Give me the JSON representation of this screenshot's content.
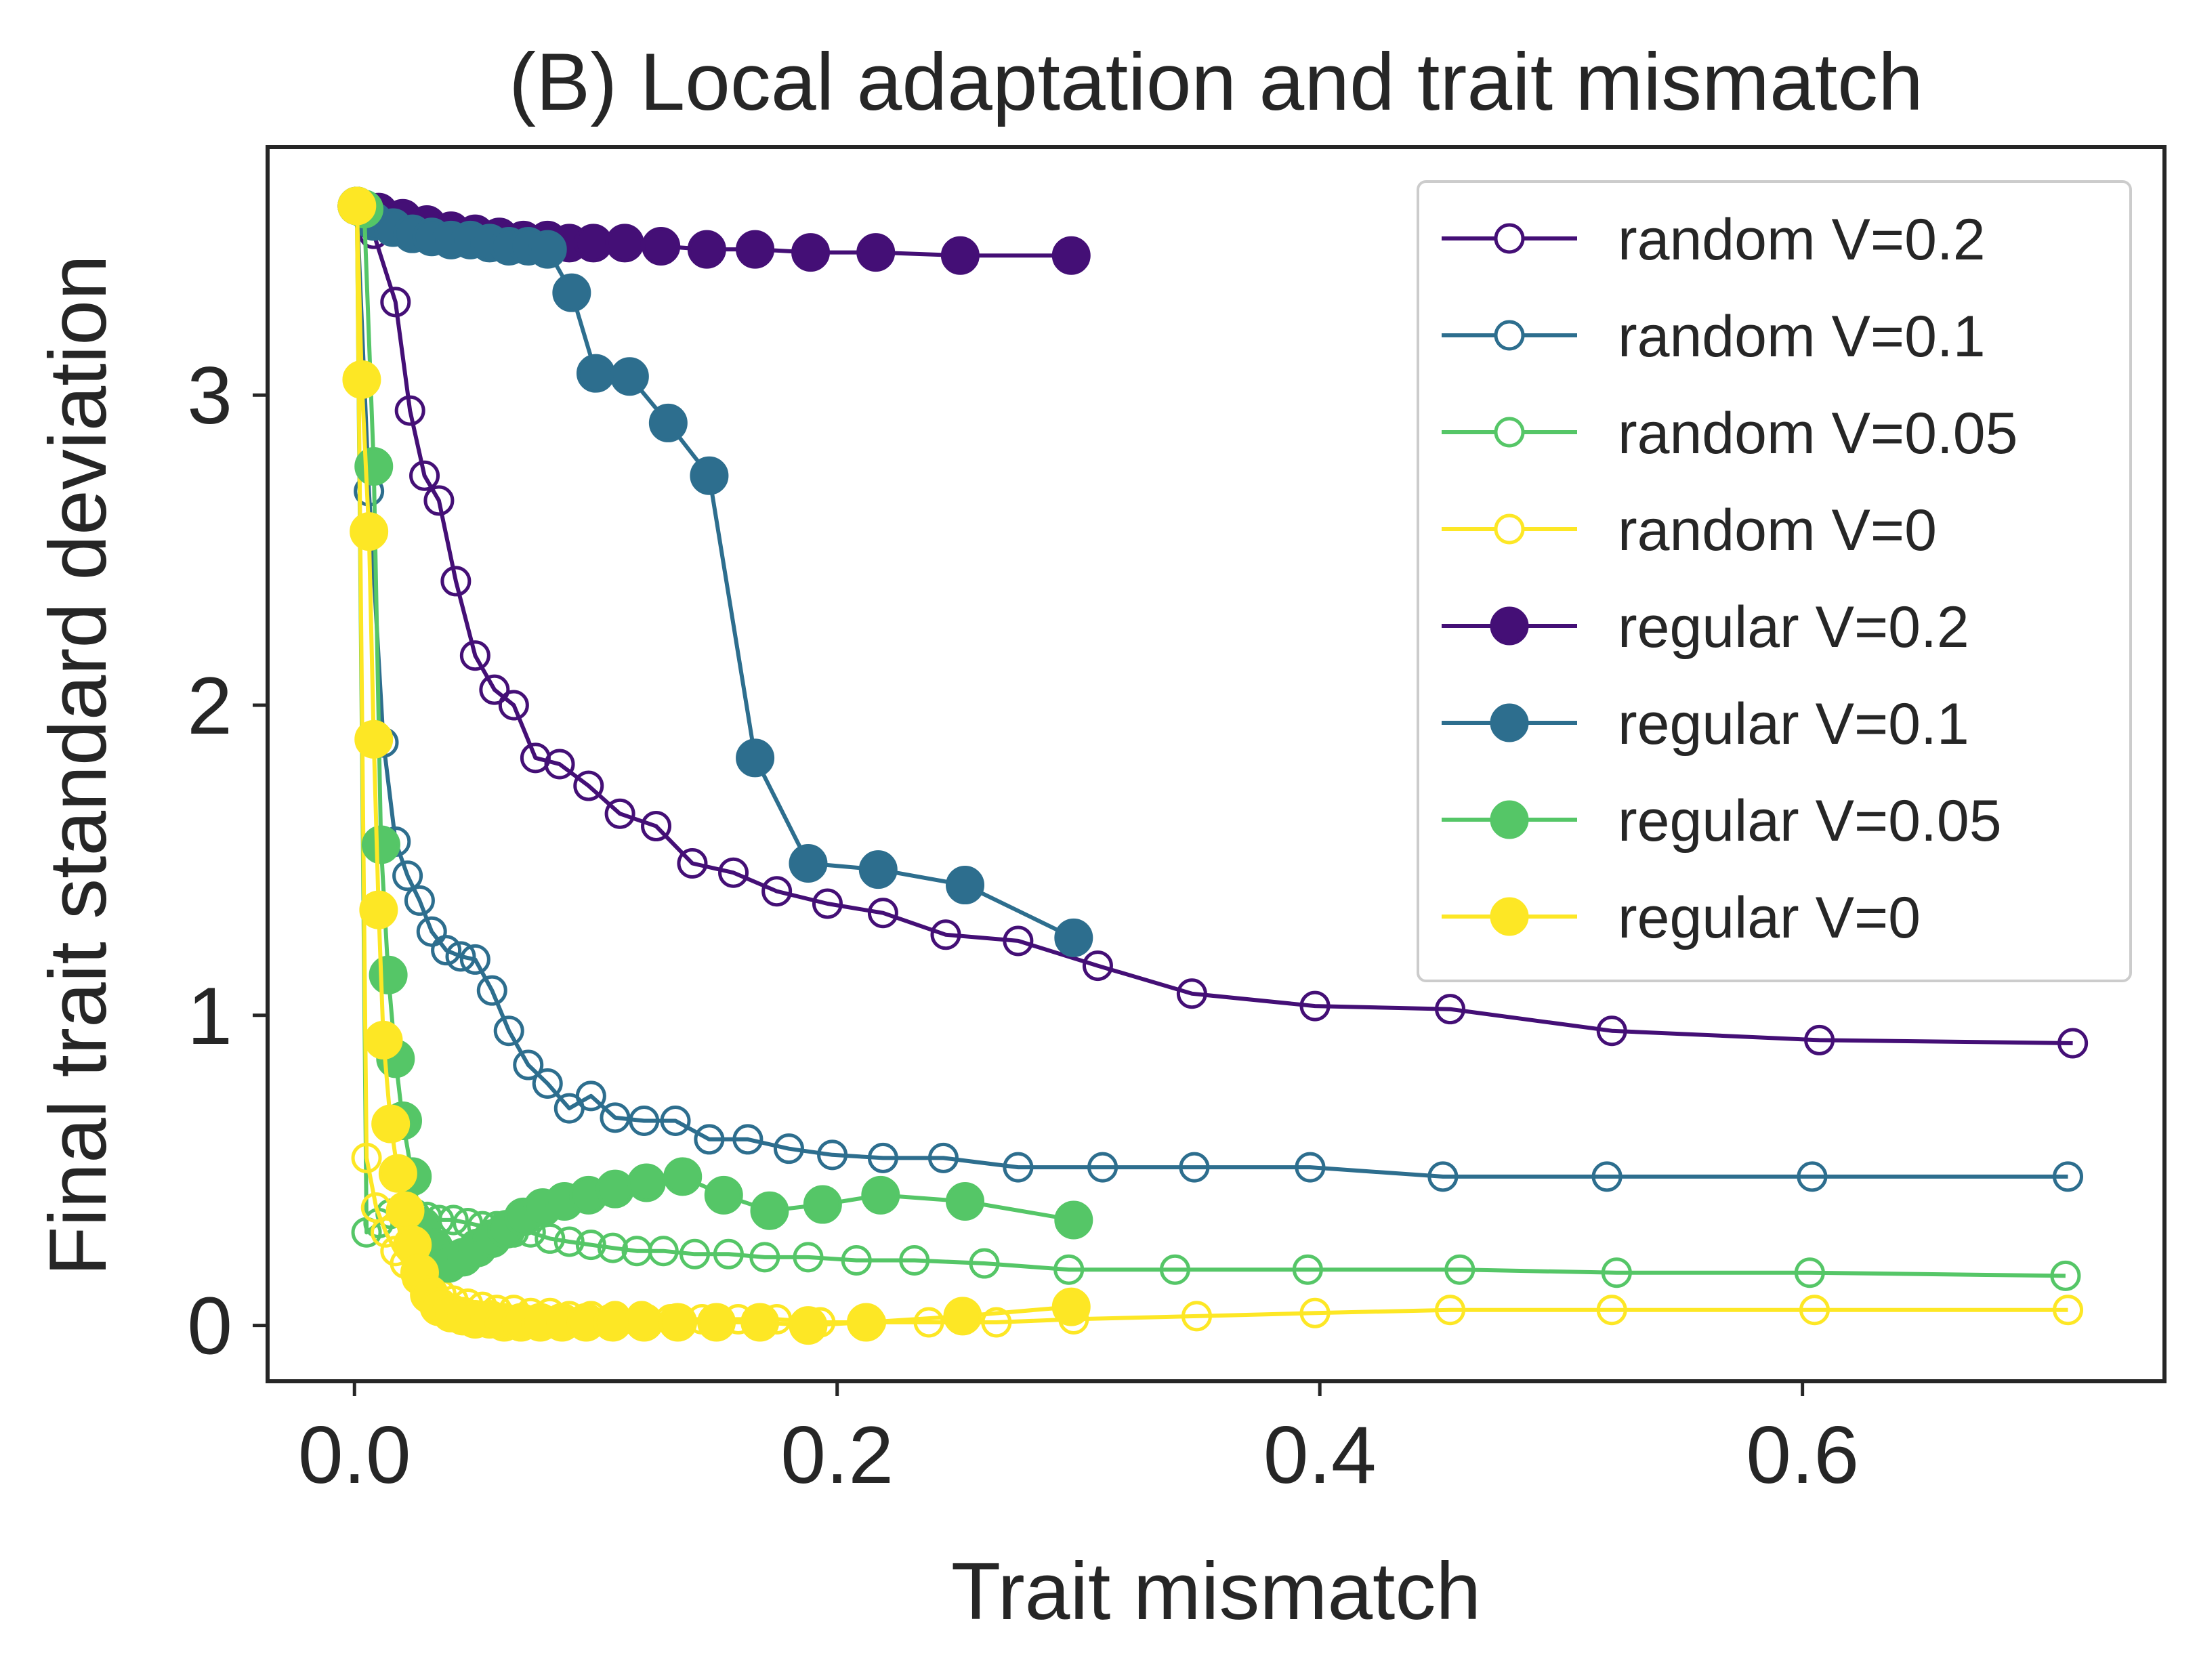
{
  "chart_data": {
    "type": "line",
    "title": "(B) Local adaptation and trait mismatch",
    "xlabel": "Trait mismatch",
    "ylabel": "Final trait standard deviation",
    "xlim": [
      -0.036,
      0.75
    ],
    "ylim": [
      -0.18,
      3.8
    ],
    "xticks": [
      0.0,
      0.2,
      0.4,
      0.6
    ],
    "xtick_labels": [
      "0.0",
      "0.2",
      "0.4",
      "0.6"
    ],
    "yticks": [
      0,
      1,
      2,
      3
    ],
    "ytick_labels": [
      "0",
      "1",
      "2",
      "3"
    ],
    "grid": false,
    "legend_position": "top-right",
    "series": [
      {
        "name": "random V=0.2",
        "color": "#440f76",
        "marker": "open",
        "x": [
          0.001,
          0.008,
          0.017,
          0.023,
          0.029,
          0.035,
          0.042,
          0.05,
          0.058,
          0.066,
          0.075,
          0.085,
          0.097,
          0.11,
          0.125,
          0.14,
          0.157,
          0.175,
          0.196,
          0.219,
          0.245,
          0.275,
          0.308,
          0.347,
          0.398,
          0.454,
          0.521,
          0.607,
          0.712
        ],
        "y": [
          3.61,
          3.52,
          3.3,
          2.95,
          2.74,
          2.66,
          2.4,
          2.16,
          2.05,
          2.0,
          1.83,
          1.81,
          1.74,
          1.65,
          1.61,
          1.49,
          1.46,
          1.4,
          1.36,
          1.33,
          1.26,
          1.24,
          1.16,
          1.07,
          1.03,
          1.02,
          0.95,
          0.92,
          0.91
        ]
      },
      {
        "name": "random V=0.1",
        "color": "#2d6e8e",
        "marker": "open",
        "x": [
          0.001,
          0.006,
          0.012,
          0.017,
          0.022,
          0.027,
          0.032,
          0.038,
          0.044,
          0.05,
          0.057,
          0.064,
          0.072,
          0.08,
          0.089,
          0.098,
          0.108,
          0.12,
          0.133,
          0.147,
          0.163,
          0.18,
          0.198,
          0.219,
          0.244,
          0.275,
          0.31,
          0.348,
          0.396,
          0.451,
          0.519,
          0.604,
          0.71
        ],
        "y": [
          3.61,
          2.69,
          1.88,
          1.56,
          1.45,
          1.37,
          1.27,
          1.21,
          1.19,
          1.18,
          1.08,
          0.95,
          0.84,
          0.78,
          0.7,
          0.74,
          0.67,
          0.66,
          0.66,
          0.6,
          0.6,
          0.57,
          0.55,
          0.54,
          0.54,
          0.51,
          0.51,
          0.51,
          0.51,
          0.48,
          0.48,
          0.48,
          0.48
        ]
      },
      {
        "name": "random V=0.05",
        "color": "#55c667",
        "marker": "open",
        "x": [
          0.001,
          0.005,
          0.01,
          0.015,
          0.02,
          0.025,
          0.03,
          0.035,
          0.041,
          0.047,
          0.053,
          0.059,
          0.066,
          0.073,
          0.081,
          0.089,
          0.098,
          0.107,
          0.117,
          0.128,
          0.141,
          0.155,
          0.17,
          0.188,
          0.208,
          0.232,
          0.261,
          0.296,
          0.34,
          0.395,
          0.458,
          0.523,
          0.603,
          0.709
        ],
        "y": [
          3.61,
          0.3,
          0.33,
          0.36,
          0.37,
          0.36,
          0.35,
          0.34,
          0.34,
          0.33,
          0.32,
          0.32,
          0.3,
          0.3,
          0.28,
          0.27,
          0.26,
          0.25,
          0.24,
          0.24,
          0.23,
          0.23,
          0.22,
          0.22,
          0.21,
          0.21,
          0.2,
          0.18,
          0.18,
          0.18,
          0.18,
          0.17,
          0.17,
          0.16
        ]
      },
      {
        "name": "random V=0",
        "color": "#fde725",
        "marker": "open",
        "x": [
          0.001,
          0.005,
          0.009,
          0.013,
          0.017,
          0.021,
          0.026,
          0.031,
          0.036,
          0.041,
          0.047,
          0.053,
          0.059,
          0.066,
          0.073,
          0.081,
          0.089,
          0.098,
          0.108,
          0.119,
          0.131,
          0.144,
          0.159,
          0.175,
          0.193,
          0.214,
          0.238,
          0.266,
          0.298,
          0.349,
          0.398,
          0.454,
          0.521,
          0.605,
          0.71
        ],
        "y": [
          3.61,
          0.54,
          0.38,
          0.3,
          0.24,
          0.2,
          0.15,
          0.12,
          0.1,
          0.08,
          0.07,
          0.06,
          0.05,
          0.05,
          0.04,
          0.04,
          0.03,
          0.03,
          0.03,
          0.03,
          0.02,
          0.02,
          0.02,
          0.02,
          0.01,
          0.01,
          0.01,
          0.01,
          0.02,
          0.03,
          0.04,
          0.05,
          0.05,
          0.05,
          0.05
        ]
      },
      {
        "name": "regular V=0.2",
        "color": "#440f76",
        "marker": "filled",
        "x": [
          0.001,
          0.01,
          0.02,
          0.03,
          0.04,
          0.05,
          0.06,
          0.07,
          0.08,
          0.089,
          0.099,
          0.112,
          0.127,
          0.146,
          0.166,
          0.189,
          0.216,
          0.251,
          0.297
        ],
        "y": [
          3.61,
          3.59,
          3.57,
          3.55,
          3.53,
          3.52,
          3.51,
          3.5,
          3.5,
          3.49,
          3.49,
          3.49,
          3.48,
          3.47,
          3.47,
          3.46,
          3.46,
          3.45,
          3.45
        ]
      },
      {
        "name": "regular V=0.1",
        "color": "#2d6e8e",
        "marker": "filled",
        "x": [
          0.001,
          0.008,
          0.016,
          0.024,
          0.032,
          0.04,
          0.048,
          0.056,
          0.064,
          0.072,
          0.08,
          0.09,
          0.1,
          0.114,
          0.13,
          0.147,
          0.166,
          0.188,
          0.217,
          0.253,
          0.298
        ],
        "y": [
          3.61,
          3.56,
          3.54,
          3.52,
          3.51,
          3.5,
          3.5,
          3.49,
          3.48,
          3.48,
          3.47,
          3.33,
          3.07,
          3.06,
          2.91,
          2.74,
          1.83,
          1.49,
          1.47,
          1.42,
          1.25
        ]
      },
      {
        "name": "regular V=0.05",
        "color": "#55c667",
        "marker": "filled",
        "x": [
          0.001,
          0.004,
          0.008,
          0.011,
          0.014,
          0.017,
          0.02,
          0.024,
          0.028,
          0.033,
          0.039,
          0.045,
          0.051,
          0.057,
          0.063,
          0.07,
          0.078,
          0.087,
          0.097,
          0.108,
          0.121,
          0.136,
          0.153,
          0.172,
          0.194,
          0.218,
          0.253,
          0.298
        ],
        "y": [
          3.61,
          3.6,
          2.77,
          1.55,
          1.13,
          0.86,
          0.66,
          0.48,
          0.32,
          0.25,
          0.2,
          0.22,
          0.25,
          0.28,
          0.31,
          0.35,
          0.38,
          0.4,
          0.42,
          0.44,
          0.46,
          0.48,
          0.42,
          0.37,
          0.39,
          0.42,
          0.4,
          0.34
        ]
      },
      {
        "name": "regular V=0",
        "color": "#fde725",
        "marker": "filled",
        "x": [
          0.001,
          0.003,
          0.006,
          0.008,
          0.01,
          0.012,
          0.015,
          0.018,
          0.021,
          0.024,
          0.027,
          0.031,
          0.035,
          0.04,
          0.045,
          0.05,
          0.056,
          0.062,
          0.069,
          0.077,
          0.086,
          0.096,
          0.107,
          0.12,
          0.134,
          0.15,
          0.168,
          0.188,
          0.212,
          0.252,
          0.297
        ],
        "y": [
          3.61,
          3.05,
          2.56,
          1.89,
          1.34,
          0.92,
          0.65,
          0.49,
          0.37,
          0.26,
          0.17,
          0.1,
          0.06,
          0.04,
          0.03,
          0.02,
          0.02,
          0.01,
          0.01,
          0.01,
          0.01,
          0.01,
          0.01,
          0.01,
          0.01,
          0.01,
          0.01,
          0.0,
          0.01,
          0.03,
          0.06
        ]
      }
    ]
  }
}
